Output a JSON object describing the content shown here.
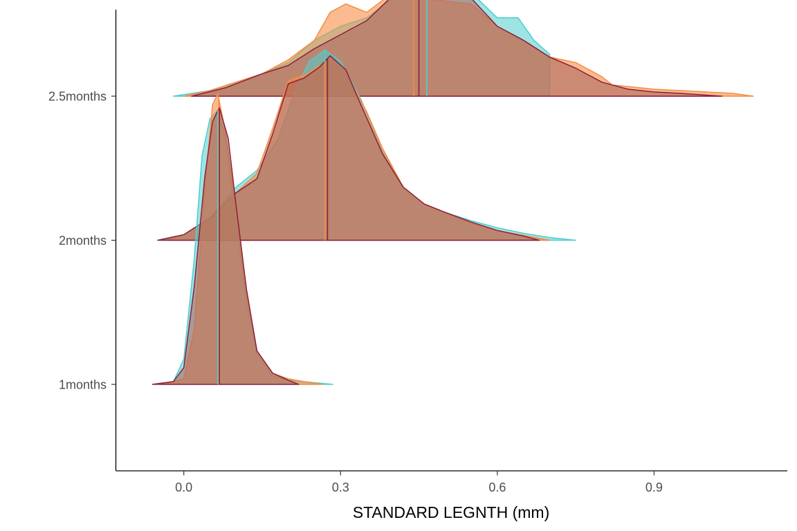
{
  "chart_data": {
    "type": "ridgeline-density",
    "title": "",
    "xlabel": "STANDARD LEGNTH (mm)",
    "ylabel": "",
    "xlim": [
      -0.13,
      1.155
    ],
    "x_ticks": [
      0.0,
      0.3,
      0.6,
      0.9
    ],
    "x_tick_labels": [
      "0.0",
      "0.3",
      "0.6",
      "0.9"
    ],
    "categories": [
      "1months",
      "2months",
      "2.5months"
    ],
    "ridge_scale": 1.94,
    "grid": false,
    "legend": "none",
    "colors": {
      "cyan": "#4ecdd0",
      "orange": "#f58d45",
      "maroon": "#8b1f3c",
      "fill_dark": "#a9635c"
    },
    "series": [
      {
        "color_key": "cyan",
        "ridges": [
          {
            "category": "1months",
            "median": 0.065,
            "range": [
              -0.045,
              0.285
            ],
            "points": [
              [
                -0.045,
                0
              ],
              [
                -0.02,
                0.01
              ],
              [
                0.0,
                0.09
              ],
              [
                0.02,
                0.45
              ],
              [
                0.035,
                0.82
              ],
              [
                0.05,
                0.95
              ],
              [
                0.065,
                0.98
              ],
              [
                0.08,
                0.88
              ],
              [
                0.1,
                0.58
              ],
              [
                0.12,
                0.3
              ],
              [
                0.14,
                0.11
              ],
              [
                0.17,
                0.03
              ],
              [
                0.2,
                0.015
              ],
              [
                0.24,
                0.008
              ],
              [
                0.285,
                0
              ]
            ]
          },
          {
            "category": "2months",
            "median": 0.27,
            "range": [
              -0.04,
              0.75
            ],
            "points": [
              [
                -0.04,
                0
              ],
              [
                0.0,
                0.02
              ],
              [
                0.05,
                0.08
              ],
              [
                0.1,
                0.19
              ],
              [
                0.14,
                0.25
              ],
              [
                0.18,
                0.36
              ],
              [
                0.21,
                0.52
              ],
              [
                0.24,
                0.64
              ],
              [
                0.27,
                0.68
              ],
              [
                0.3,
                0.64
              ],
              [
                0.34,
                0.5
              ],
              [
                0.38,
                0.32
              ],
              [
                0.42,
                0.19
              ],
              [
                0.46,
                0.13
              ],
              [
                0.5,
                0.1
              ],
              [
                0.55,
                0.07
              ],
              [
                0.6,
                0.045
              ],
              [
                0.65,
                0.025
              ],
              [
                0.7,
                0.01
              ],
              [
                0.75,
                0
              ]
            ]
          },
          {
            "category": "2.5months",
            "median": 0.465,
            "range": [
              -0.02,
              0.7
            ],
            "points": [
              [
                -0.02,
                0
              ],
              [
                0.05,
                0.02
              ],
              [
                0.1,
                0.05
              ],
              [
                0.15,
                0.08
              ],
              [
                0.2,
                0.12
              ],
              [
                0.25,
                0.2
              ],
              [
                0.3,
                0.25
              ],
              [
                0.35,
                0.28
              ],
              [
                0.4,
                0.35
              ],
              [
                0.45,
                0.39
              ],
              [
                0.5,
                0.4
              ],
              [
                0.55,
                0.37
              ],
              [
                0.6,
                0.28
              ],
              [
                0.64,
                0.28
              ],
              [
                0.67,
                0.2
              ],
              [
                0.7,
                0.15
              ]
            ]
          }
        ]
      },
      {
        "color_key": "orange",
        "ridges": [
          {
            "category": "1months",
            "median": 0.067,
            "range": [
              -0.04,
              0.265
            ],
            "points": [
              [
                -0.04,
                0
              ],
              [
                0.0,
                0.02
              ],
              [
                0.02,
                0.2
              ],
              [
                0.04,
                0.7
              ],
              [
                0.055,
                1.0
              ],
              [
                0.065,
                1.04
              ],
              [
                0.08,
                0.9
              ],
              [
                0.1,
                0.62
              ],
              [
                0.12,
                0.33
              ],
              [
                0.14,
                0.12
              ],
              [
                0.17,
                0.04
              ],
              [
                0.2,
                0.02
              ],
              [
                0.23,
                0.01
              ],
              [
                0.265,
                0
              ]
            ]
          },
          {
            "category": "2months",
            "median": 0.27,
            "range": [
              -0.03,
              0.7
            ],
            "points": [
              [
                -0.03,
                0
              ],
              [
                0.0,
                0.02
              ],
              [
                0.05,
                0.08
              ],
              [
                0.1,
                0.17
              ],
              [
                0.14,
                0.24
              ],
              [
                0.17,
                0.4
              ],
              [
                0.2,
                0.57
              ],
              [
                0.24,
                0.6
              ],
              [
                0.28,
                0.65
              ],
              [
                0.31,
                0.6
              ],
              [
                0.35,
                0.46
              ],
              [
                0.38,
                0.33
              ],
              [
                0.42,
                0.19
              ],
              [
                0.46,
                0.13
              ],
              [
                0.5,
                0.1
              ],
              [
                0.55,
                0.06
              ],
              [
                0.6,
                0.035
              ],
              [
                0.7,
                0
              ]
            ]
          },
          {
            "category": "2.5months",
            "median": 0.44,
            "range": [
              0.0,
              1.09
            ],
            "points": [
              [
                0.0,
                0
              ],
              [
                0.05,
                0.02
              ],
              [
                0.1,
                0.05
              ],
              [
                0.15,
                0.08
              ],
              [
                0.2,
                0.13
              ],
              [
                0.25,
                0.2
              ],
              [
                0.28,
                0.3
              ],
              [
                0.31,
                0.33
              ],
              [
                0.35,
                0.3
              ],
              [
                0.4,
                0.37
              ],
              [
                0.45,
                0.35
              ],
              [
                0.5,
                0.34
              ],
              [
                0.55,
                0.33
              ],
              [
                0.6,
                0.25
              ],
              [
                0.65,
                0.2
              ],
              [
                0.7,
                0.14
              ],
              [
                0.75,
                0.12
              ],
              [
                0.78,
                0.09
              ],
              [
                0.8,
                0.07
              ],
              [
                0.82,
                0.04
              ],
              [
                0.9,
                0.025
              ],
              [
                0.95,
                0.02
              ],
              [
                1.0,
                0.015
              ],
              [
                1.05,
                0.01
              ],
              [
                1.09,
                0
              ]
            ]
          }
        ]
      },
      {
        "color_key": "maroon",
        "ridges": [
          {
            "category": "1months",
            "median": 0.068,
            "range": [
              -0.06,
              0.22
            ],
            "points": [
              [
                -0.06,
                0
              ],
              [
                -0.02,
                0.01
              ],
              [
                0.0,
                0.06
              ],
              [
                0.02,
                0.35
              ],
              [
                0.04,
                0.74
              ],
              [
                0.055,
                0.94
              ],
              [
                0.068,
                0.99
              ],
              [
                0.085,
                0.88
              ],
              [
                0.1,
                0.64
              ],
              [
                0.12,
                0.34
              ],
              [
                0.14,
                0.12
              ],
              [
                0.17,
                0.04
              ],
              [
                0.2,
                0.015
              ],
              [
                0.22,
                0
              ]
            ]
          },
          {
            "category": "2months",
            "median": 0.275,
            "range": [
              -0.05,
              0.68
            ],
            "points": [
              [
                -0.05,
                0
              ],
              [
                0.0,
                0.02
              ],
              [
                0.05,
                0.08
              ],
              [
                0.1,
                0.17
              ],
              [
                0.14,
                0.22
              ],
              [
                0.17,
                0.38
              ],
              [
                0.2,
                0.56
              ],
              [
                0.23,
                0.58
              ],
              [
                0.26,
                0.62
              ],
              [
                0.28,
                0.66
              ],
              [
                0.31,
                0.61
              ],
              [
                0.34,
                0.48
              ],
              [
                0.38,
                0.31
              ],
              [
                0.42,
                0.19
              ],
              [
                0.46,
                0.13
              ],
              [
                0.5,
                0.1
              ],
              [
                0.55,
                0.065
              ],
              [
                0.6,
                0.035
              ],
              [
                0.65,
                0.015
              ],
              [
                0.68,
                0
              ]
            ]
          },
          {
            "category": "2.5months",
            "median": 0.45,
            "range": [
              0.015,
              1.03
            ],
            "points": [
              [
                0.015,
                0
              ],
              [
                0.08,
                0.03
              ],
              [
                0.15,
                0.08
              ],
              [
                0.2,
                0.11
              ],
              [
                0.25,
                0.17
              ],
              [
                0.3,
                0.22
              ],
              [
                0.35,
                0.27
              ],
              [
                0.4,
                0.36
              ],
              [
                0.45,
                0.42
              ],
              [
                0.47,
                0.43
              ],
              [
                0.5,
                0.41
              ],
              [
                0.55,
                0.35
              ],
              [
                0.6,
                0.25
              ],
              [
                0.65,
                0.2
              ],
              [
                0.7,
                0.14
              ],
              [
                0.75,
                0.1
              ],
              [
                0.8,
                0.05
              ],
              [
                0.85,
                0.025
              ],
              [
                0.9,
                0.015
              ],
              [
                0.95,
                0.01
              ],
              [
                1.03,
                0
              ]
            ]
          }
        ]
      }
    ]
  }
}
